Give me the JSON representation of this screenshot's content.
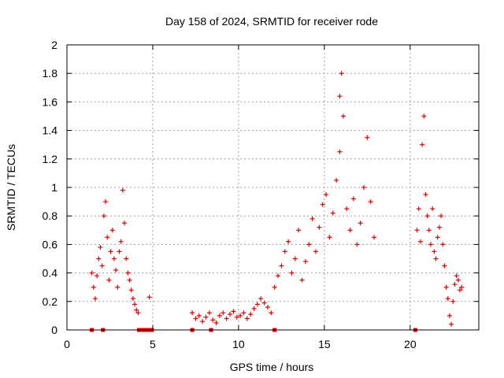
{
  "chart_data": {
    "type": "scatter",
    "title": "Day 158 of 2024, SRMTID for receiver rode",
    "xlabel": "GPS time / hours",
    "ylabel": "SRMTID / TECUs",
    "xlim": [
      0,
      24
    ],
    "ylim": [
      0,
      2
    ],
    "grid": true,
    "x_ticks": [
      0,
      5,
      10,
      15,
      20
    ],
    "x_tick_labels": [
      "0",
      "5",
      "10",
      "15",
      "20"
    ],
    "y_ticks": [
      0,
      0.2,
      0.4,
      0.6,
      0.8,
      1,
      1.2,
      1.4,
      1.6,
      1.8,
      2
    ],
    "y_tick_labels": [
      "0",
      "0.2",
      "0.4",
      "0.6",
      "0.8",
      "1",
      "1.2",
      "1.4",
      "1.6",
      "1.8",
      "2"
    ],
    "marker": "+",
    "series": [
      {
        "name": "SRMTID",
        "color": "#e00000",
        "segments": [
          {
            "x": [
              1.45,
              1.55,
              1.65,
              1.75,
              1.85,
              1.95,
              2.05,
              2.15,
              2.25,
              2.35,
              2.45,
              2.55,
              2.65,
              2.75,
              2.85,
              2.95,
              3.05,
              3.15,
              3.25,
              3.35,
              3.45,
              3.55,
              3.65,
              3.75,
              3.85,
              3.95,
              4.05,
              4.15
            ],
            "y": [
              0.4,
              0.3,
              0.22,
              0.38,
              0.5,
              0.58,
              0.45,
              0.8,
              0.9,
              0.65,
              0.35,
              0.55,
              0.7,
              0.5,
              0.42,
              0.3,
              0.55,
              0.62,
              0.98,
              0.75,
              0.5,
              0.4,
              0.35,
              0.28,
              0.22,
              0.18,
              0.14,
              0.12
            ]
          },
          {
            "x": [
              4.8
            ],
            "y": [
              0.23
            ]
          },
          {
            "x": [
              7.3,
              7.5,
              7.7,
              7.9,
              8.1,
              8.3,
              8.5,
              8.7,
              8.9,
              9.1,
              9.3,
              9.5,
              9.7,
              9.9,
              10.1,
              10.3,
              10.5,
              10.7,
              10.9,
              11.1,
              11.3,
              11.5,
              11.7,
              11.9
            ],
            "y": [
              0.12,
              0.08,
              0.1,
              0.06,
              0.09,
              0.12,
              0.07,
              0.05,
              0.1,
              0.12,
              0.08,
              0.11,
              0.13,
              0.09,
              0.1,
              0.12,
              0.08,
              0.11,
              0.15,
              0.18,
              0.22,
              0.19,
              0.16,
              0.12
            ]
          },
          {
            "x": [
              12.1,
              12.3,
              12.5,
              12.7,
              12.9,
              13.1,
              13.3,
              13.5,
              13.7,
              13.9,
              14.1,
              14.3,
              14.5,
              14.7,
              14.9,
              15.1,
              15.3,
              15.5,
              15.7,
              15.9,
              16.1,
              16.3,
              16.5,
              16.7,
              16.9,
              17.1,
              17.3,
              17.5,
              17.7,
              17.9
            ],
            "y": [
              0.3,
              0.38,
              0.45,
              0.55,
              0.62,
              0.4,
              0.5,
              0.7,
              0.35,
              0.48,
              0.6,
              0.78,
              0.55,
              0.72,
              0.88,
              0.95,
              0.65,
              0.82,
              1.05,
              1.25,
              1.5,
              0.85,
              0.7,
              0.92,
              0.6,
              0.75,
              1.0,
              1.35,
              0.9,
              0.65
            ]
          },
          {
            "x": [
              15.9,
              16.0
            ],
            "y": [
              1.64,
              1.8
            ]
          },
          {
            "x": [
              20.4,
              20.5,
              20.6,
              20.7,
              20.8,
              20.9,
              21.0,
              21.1,
              21.2,
              21.3,
              21.4,
              21.5,
              21.6,
              21.7,
              21.8,
              21.9,
              22.0,
              22.1,
              22.2,
              22.3,
              22.4,
              22.5,
              22.6,
              22.7,
              22.8,
              22.9,
              23.0
            ],
            "y": [
              0.7,
              0.85,
              0.62,
              1.3,
              1.5,
              0.95,
              0.8,
              0.7,
              0.6,
              0.85,
              0.55,
              0.5,
              0.65,
              0.72,
              0.8,
              0.6,
              0.45,
              0.3,
              0.22,
              0.1,
              0.04,
              0.2,
              0.32,
              0.38,
              0.35,
              0.28,
              0.3
            ]
          }
        ]
      }
    ],
    "zero_markers_x": [
      1.45,
      2.1,
      4.2,
      4.35,
      4.5,
      4.65,
      4.8,
      4.95,
      7.3,
      8.4,
      12.1,
      20.3
    ]
  }
}
